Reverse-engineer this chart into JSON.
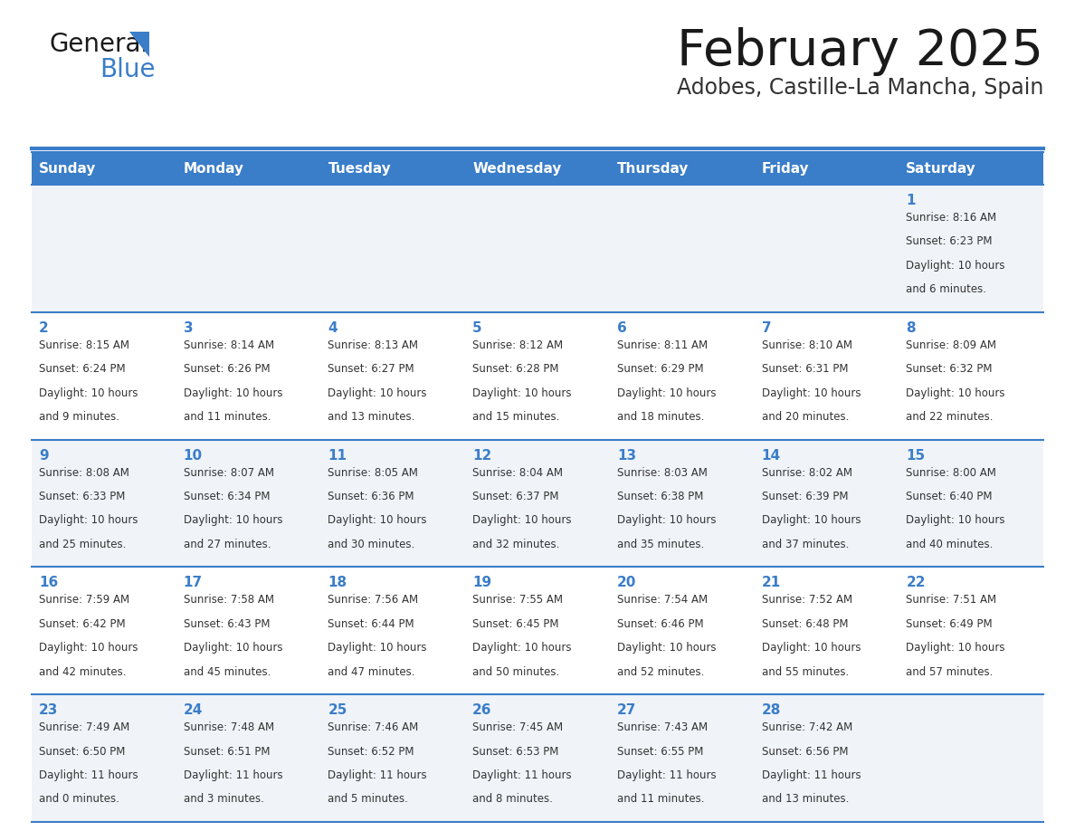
{
  "title": "February 2025",
  "subtitle": "Adobes, Castille-La Mancha, Spain",
  "days_of_week": [
    "Sunday",
    "Monday",
    "Tuesday",
    "Wednesday",
    "Thursday",
    "Friday",
    "Saturday"
  ],
  "header_bg": "#3A7DC9",
  "header_text": "#FFFFFF",
  "cell_bg_even": "#F0F4F8",
  "cell_bg_odd": "#FFFFFF",
  "border_color": "#3A7DC9",
  "sep_line_color": "#3A7DC9",
  "text_color": "#333333",
  "title_color": "#1a1a1a",
  "subtitle_color": "#333333",
  "day_num_color": "#3A7DC9",
  "logo_text_color": "#1a1a1a",
  "logo_blue_color": "#3A7DC9",
  "calendar_data": [
    [
      {
        "day": null,
        "sunrise": null,
        "sunset": null,
        "daylight": null
      },
      {
        "day": null,
        "sunrise": null,
        "sunset": null,
        "daylight": null
      },
      {
        "day": null,
        "sunrise": null,
        "sunset": null,
        "daylight": null
      },
      {
        "day": null,
        "sunrise": null,
        "sunset": null,
        "daylight": null
      },
      {
        "day": null,
        "sunrise": null,
        "sunset": null,
        "daylight": null
      },
      {
        "day": null,
        "sunrise": null,
        "sunset": null,
        "daylight": null
      },
      {
        "day": 1,
        "sunrise": "8:16 AM",
        "sunset": "6:23 PM",
        "daylight": "10 hours and 6 minutes."
      }
    ],
    [
      {
        "day": 2,
        "sunrise": "8:15 AM",
        "sunset": "6:24 PM",
        "daylight": "10 hours and 9 minutes."
      },
      {
        "day": 3,
        "sunrise": "8:14 AM",
        "sunset": "6:26 PM",
        "daylight": "10 hours and 11 minutes."
      },
      {
        "day": 4,
        "sunrise": "8:13 AM",
        "sunset": "6:27 PM",
        "daylight": "10 hours and 13 minutes."
      },
      {
        "day": 5,
        "sunrise": "8:12 AM",
        "sunset": "6:28 PM",
        "daylight": "10 hours and 15 minutes."
      },
      {
        "day": 6,
        "sunrise": "8:11 AM",
        "sunset": "6:29 PM",
        "daylight": "10 hours and 18 minutes."
      },
      {
        "day": 7,
        "sunrise": "8:10 AM",
        "sunset": "6:31 PM",
        "daylight": "10 hours and 20 minutes."
      },
      {
        "day": 8,
        "sunrise": "8:09 AM",
        "sunset": "6:32 PM",
        "daylight": "10 hours and 22 minutes."
      }
    ],
    [
      {
        "day": 9,
        "sunrise": "8:08 AM",
        "sunset": "6:33 PM",
        "daylight": "10 hours and 25 minutes."
      },
      {
        "day": 10,
        "sunrise": "8:07 AM",
        "sunset": "6:34 PM",
        "daylight": "10 hours and 27 minutes."
      },
      {
        "day": 11,
        "sunrise": "8:05 AM",
        "sunset": "6:36 PM",
        "daylight": "10 hours and 30 minutes."
      },
      {
        "day": 12,
        "sunrise": "8:04 AM",
        "sunset": "6:37 PM",
        "daylight": "10 hours and 32 minutes."
      },
      {
        "day": 13,
        "sunrise": "8:03 AM",
        "sunset": "6:38 PM",
        "daylight": "10 hours and 35 minutes."
      },
      {
        "day": 14,
        "sunrise": "8:02 AM",
        "sunset": "6:39 PM",
        "daylight": "10 hours and 37 minutes."
      },
      {
        "day": 15,
        "sunrise": "8:00 AM",
        "sunset": "6:40 PM",
        "daylight": "10 hours and 40 minutes."
      }
    ],
    [
      {
        "day": 16,
        "sunrise": "7:59 AM",
        "sunset": "6:42 PM",
        "daylight": "10 hours and 42 minutes."
      },
      {
        "day": 17,
        "sunrise": "7:58 AM",
        "sunset": "6:43 PM",
        "daylight": "10 hours and 45 minutes."
      },
      {
        "day": 18,
        "sunrise": "7:56 AM",
        "sunset": "6:44 PM",
        "daylight": "10 hours and 47 minutes."
      },
      {
        "day": 19,
        "sunrise": "7:55 AM",
        "sunset": "6:45 PM",
        "daylight": "10 hours and 50 minutes."
      },
      {
        "day": 20,
        "sunrise": "7:54 AM",
        "sunset": "6:46 PM",
        "daylight": "10 hours and 52 minutes."
      },
      {
        "day": 21,
        "sunrise": "7:52 AM",
        "sunset": "6:48 PM",
        "daylight": "10 hours and 55 minutes."
      },
      {
        "day": 22,
        "sunrise": "7:51 AM",
        "sunset": "6:49 PM",
        "daylight": "10 hours and 57 minutes."
      }
    ],
    [
      {
        "day": 23,
        "sunrise": "7:49 AM",
        "sunset": "6:50 PM",
        "daylight": "11 hours and 0 minutes."
      },
      {
        "day": 24,
        "sunrise": "7:48 AM",
        "sunset": "6:51 PM",
        "daylight": "11 hours and 3 minutes."
      },
      {
        "day": 25,
        "sunrise": "7:46 AM",
        "sunset": "6:52 PM",
        "daylight": "11 hours and 5 minutes."
      },
      {
        "day": 26,
        "sunrise": "7:45 AM",
        "sunset": "6:53 PM",
        "daylight": "11 hours and 8 minutes."
      },
      {
        "day": 27,
        "sunrise": "7:43 AM",
        "sunset": "6:55 PM",
        "daylight": "11 hours and 11 minutes."
      },
      {
        "day": 28,
        "sunrise": "7:42 AM",
        "sunset": "6:56 PM",
        "daylight": "11 hours and 13 minutes."
      },
      {
        "day": null,
        "sunrise": null,
        "sunset": null,
        "daylight": null
      }
    ]
  ]
}
